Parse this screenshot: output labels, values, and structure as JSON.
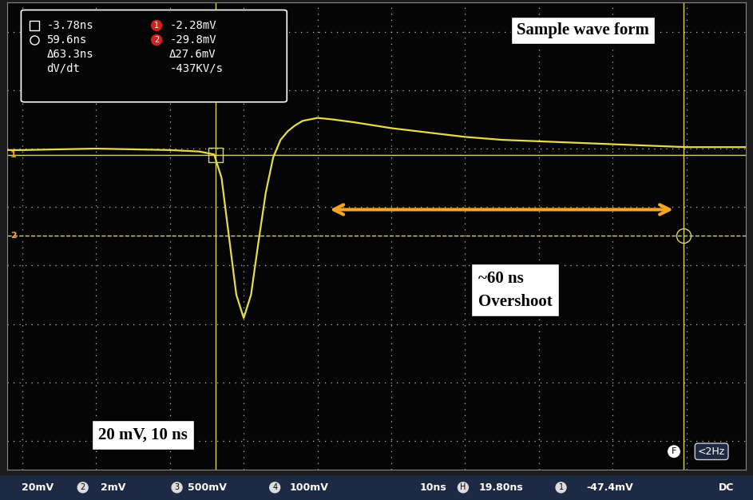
{
  "chart_data": {
    "type": "line",
    "title": "Sample wave form",
    "x": [
      -32,
      -30,
      -20,
      -10,
      -6,
      -4,
      -3,
      -2,
      -1,
      0,
      1,
      2,
      3,
      4,
      5,
      6,
      7,
      8,
      10,
      12,
      15,
      20,
      25,
      30,
      35,
      40,
      45,
      50,
      55,
      60,
      65,
      68
    ],
    "values": [
      -0.5,
      -0.5,
      0,
      -0.5,
      -1,
      -2,
      -10,
      -30,
      -50,
      -58,
      -50,
      -32,
      -15,
      -3,
      3,
      6,
      8,
      9.5,
      10.5,
      10,
      9,
      7,
      5.5,
      4,
      3,
      2.5,
      2,
      1.5,
      1,
      0.5,
      0.5,
      0.5
    ],
    "color": "#e6dc4a",
    "xlim": [
      -32,
      68
    ],
    "ylim": [
      -110,
      50
    ],
    "xticks": [
      -30,
      -20,
      -10,
      0,
      10,
      20,
      30,
      40,
      50,
      60
    ],
    "yticks": [
      -100,
      -80,
      -60,
      -40,
      -20,
      0,
      20,
      40
    ],
    "grid": true,
    "tick_labels": false,
    "cursors": {
      "x": [
        -3.78,
        59.6
      ],
      "y": [
        -2.28,
        -29.8
      ]
    },
    "readout": [
      [
        "-3.78ns",
        "-2.28mV"
      ],
      [
        "59.6ns",
        "-29.8mV"
      ],
      [
        "Δ63.3ns",
        "Δ27.6mV"
      ],
      [
        "dV/dt",
        "-437KV/s"
      ]
    ],
    "channel_markers": [
      "1",
      "2"
    ],
    "annotations": [
      "~60 ns\nOvershoot",
      "20 mV, 10 ns"
    ],
    "status_bar": [
      "20mV",
      "2",
      "2mV",
      "3",
      "500mV",
      "4",
      "100mV",
      "10ns",
      "H",
      "19.80ns",
      "1",
      "-47.4mV",
      "DC"
    ],
    "trigger": [
      "F",
      "<2Hz"
    ]
  }
}
